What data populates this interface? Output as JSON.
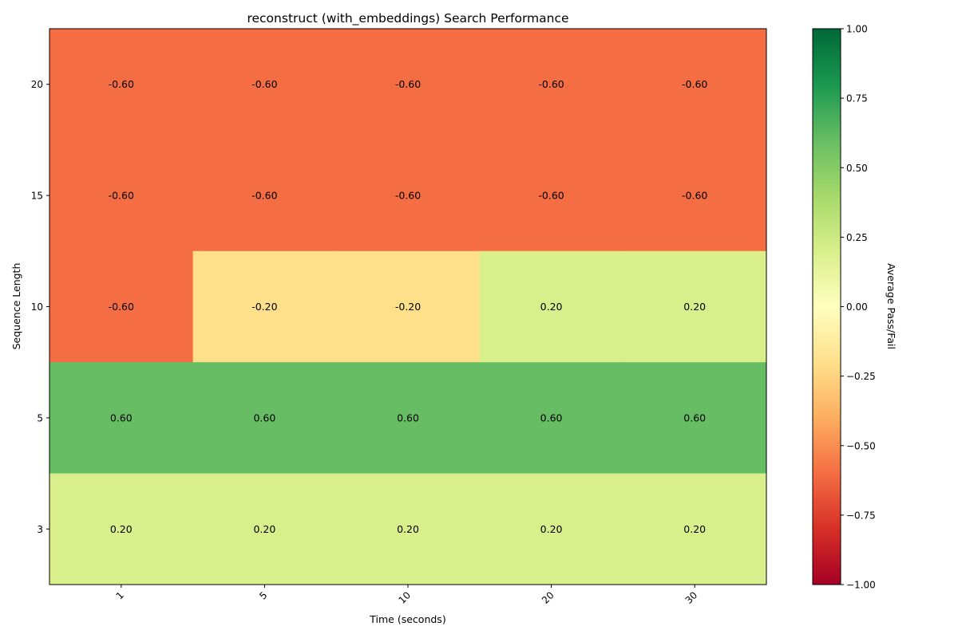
{
  "chart_data": {
    "type": "heatmap",
    "title": "reconstruct (with_embeddings) Search Performance",
    "xlabel": "Time (seconds)",
    "ylabel": "Sequence Length",
    "x_categories": [
      "1",
      "5",
      "10",
      "20",
      "30"
    ],
    "y_categories": [
      "20",
      "15",
      "10",
      "5",
      "3"
    ],
    "values": [
      [
        -0.6,
        -0.6,
        -0.6,
        -0.6,
        -0.6
      ],
      [
        -0.6,
        -0.6,
        -0.6,
        -0.6,
        -0.6
      ],
      [
        -0.6,
        -0.2,
        -0.2,
        0.2,
        0.2
      ],
      [
        0.6,
        0.6,
        0.6,
        0.6,
        0.6
      ],
      [
        0.2,
        0.2,
        0.2,
        0.2,
        0.2
      ]
    ],
    "value_labels": [
      [
        "-0.60",
        "-0.60",
        "-0.60",
        "-0.60",
        "-0.60"
      ],
      [
        "-0.60",
        "-0.60",
        "-0.60",
        "-0.60",
        "-0.60"
      ],
      [
        "-0.60",
        "-0.20",
        "-0.20",
        "0.20",
        "0.20"
      ],
      [
        "0.60",
        "0.60",
        "0.60",
        "0.60",
        "0.60"
      ],
      [
        "0.20",
        "0.20",
        "0.20",
        "0.20",
        "0.20"
      ]
    ],
    "colorbar": {
      "label": "Average Pass/Fail",
      "vmin": -1.0,
      "vmax": 1.0,
      "colormap": "RdYlGn",
      "ticks": [
        -1.0,
        -0.75,
        -0.5,
        -0.25,
        0.0,
        0.25,
        0.5,
        0.75,
        1.0
      ],
      "tick_labels": [
        "−1.00",
        "−0.75",
        "−0.50",
        "−0.25",
        "0.00",
        "0.25",
        "0.50",
        "0.75",
        "1.00"
      ]
    },
    "colors": {
      "-0.6": "#f46d43",
      "-0.2": "#fee08b",
      "0.2": "#d9ef8b",
      "0.6": "#66bd63"
    }
  }
}
